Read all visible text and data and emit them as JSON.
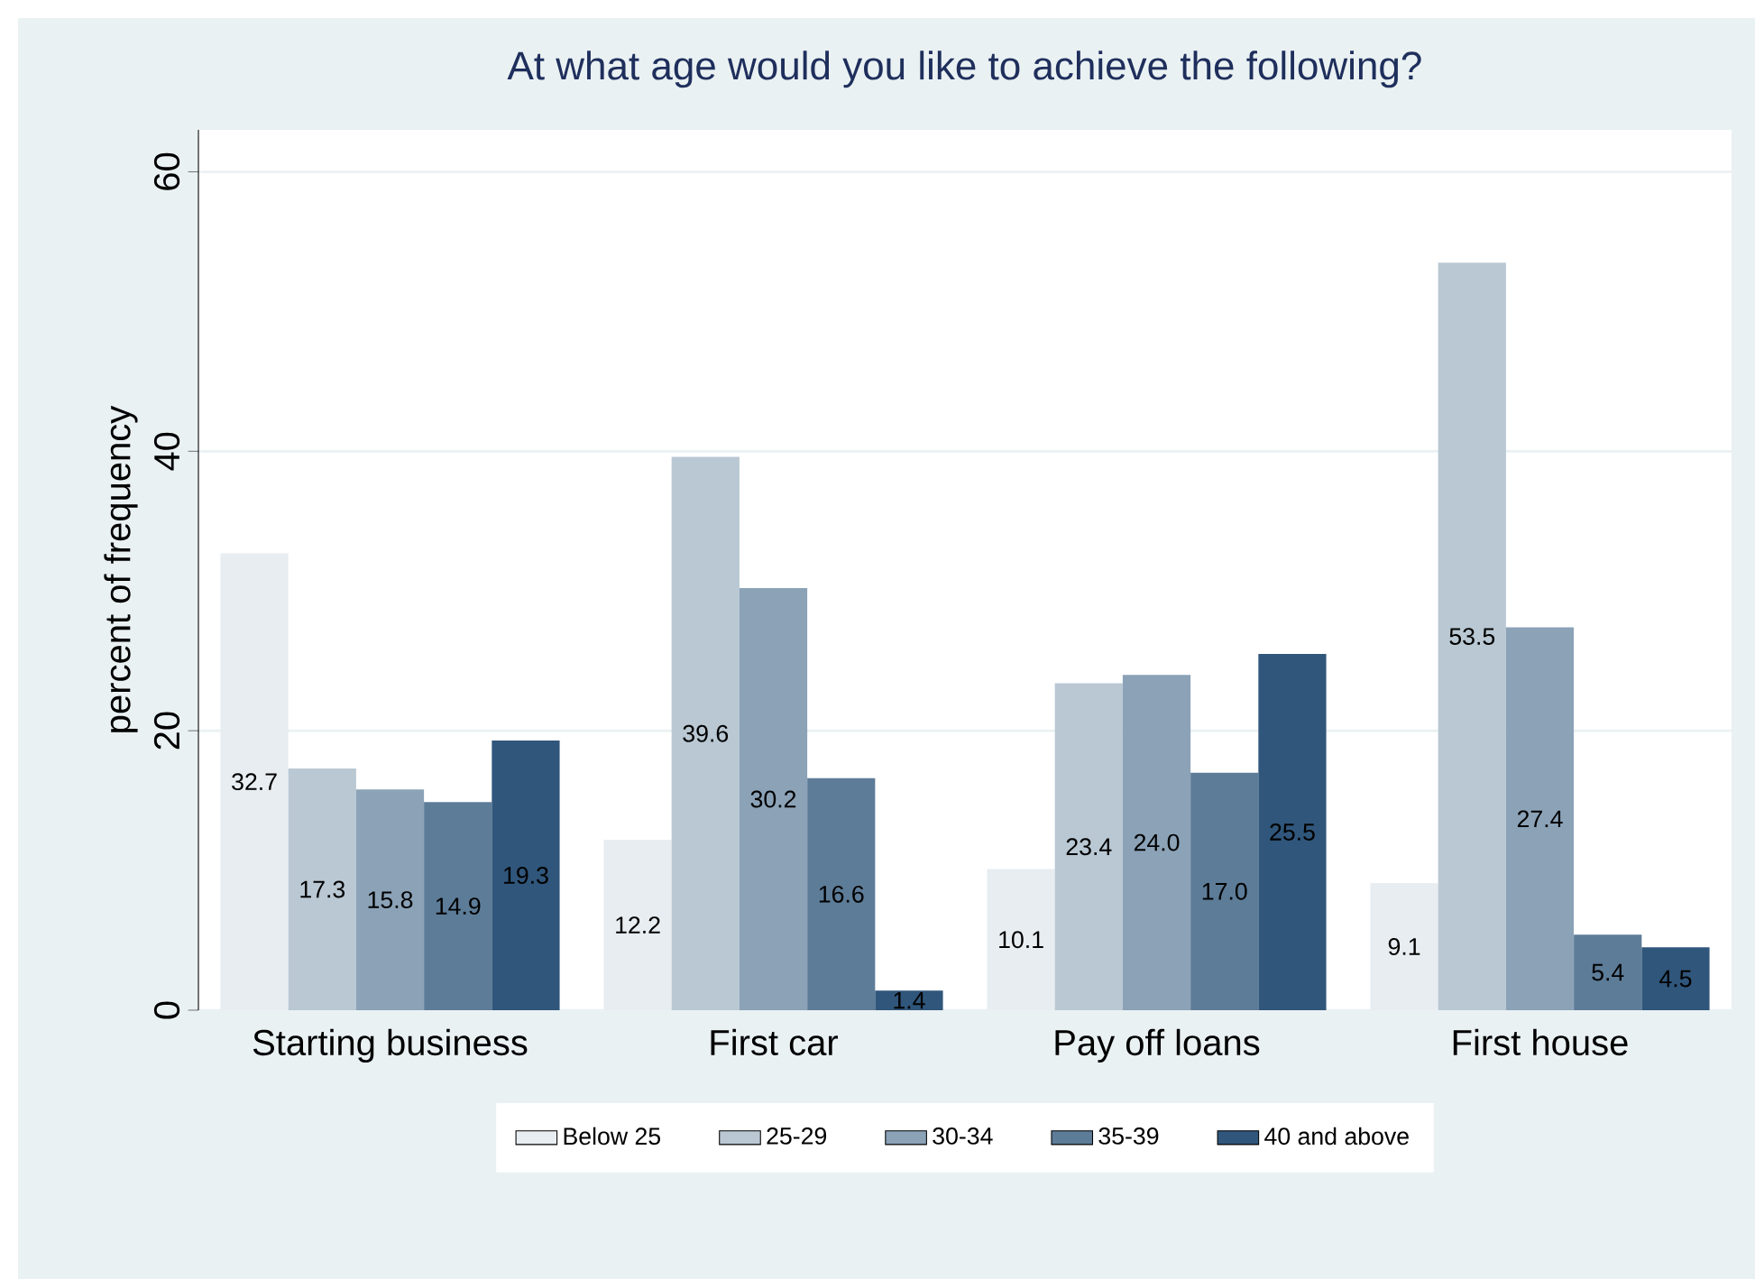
{
  "chart_data": {
    "type": "bar",
    "title": "At what age would you like to achieve the following?",
    "ylabel": "percent of frequency",
    "categories": [
      "Starting business",
      "First car",
      "Pay off loans",
      "First house"
    ],
    "series": [
      {
        "name": "Below 25",
        "color": "#e8edf1",
        "values": [
          32.7,
          12.2,
          10.1,
          9.1
        ],
        "value_labels": [
          "32.7",
          "12.2",
          "10.1",
          "9.1"
        ]
      },
      {
        "name": "25-29",
        "color": "#b9c8d3",
        "values": [
          17.3,
          39.6,
          23.4,
          53.5
        ],
        "value_labels": [
          "17.3",
          "39.6",
          "23.4",
          "53.5"
        ]
      },
      {
        "name": "30-34",
        "color": "#8ba2b7",
        "values": [
          15.8,
          30.2,
          24.0,
          27.4
        ],
        "value_labels": [
          "15.8",
          "30.2",
          "24.0",
          "27.4"
        ]
      },
      {
        "name": "35-39",
        "color": "#5d7c98",
        "values": [
          14.9,
          16.6,
          17.0,
          5.4
        ],
        "value_labels": [
          "14.9",
          "16.6",
          "17.0",
          "5.4"
        ]
      },
      {
        "name": "40 and above",
        "color": "#30567b",
        "values": [
          19.3,
          1.4,
          25.5,
          4.5
        ],
        "value_labels": [
          "19.3",
          "1.4",
          "25.5",
          "4.5"
        ]
      }
    ],
    "ylim": [
      0,
      63
    ],
    "yticks": [
      0,
      20,
      40,
      60
    ],
    "grid": "y",
    "legend": "bottom"
  }
}
